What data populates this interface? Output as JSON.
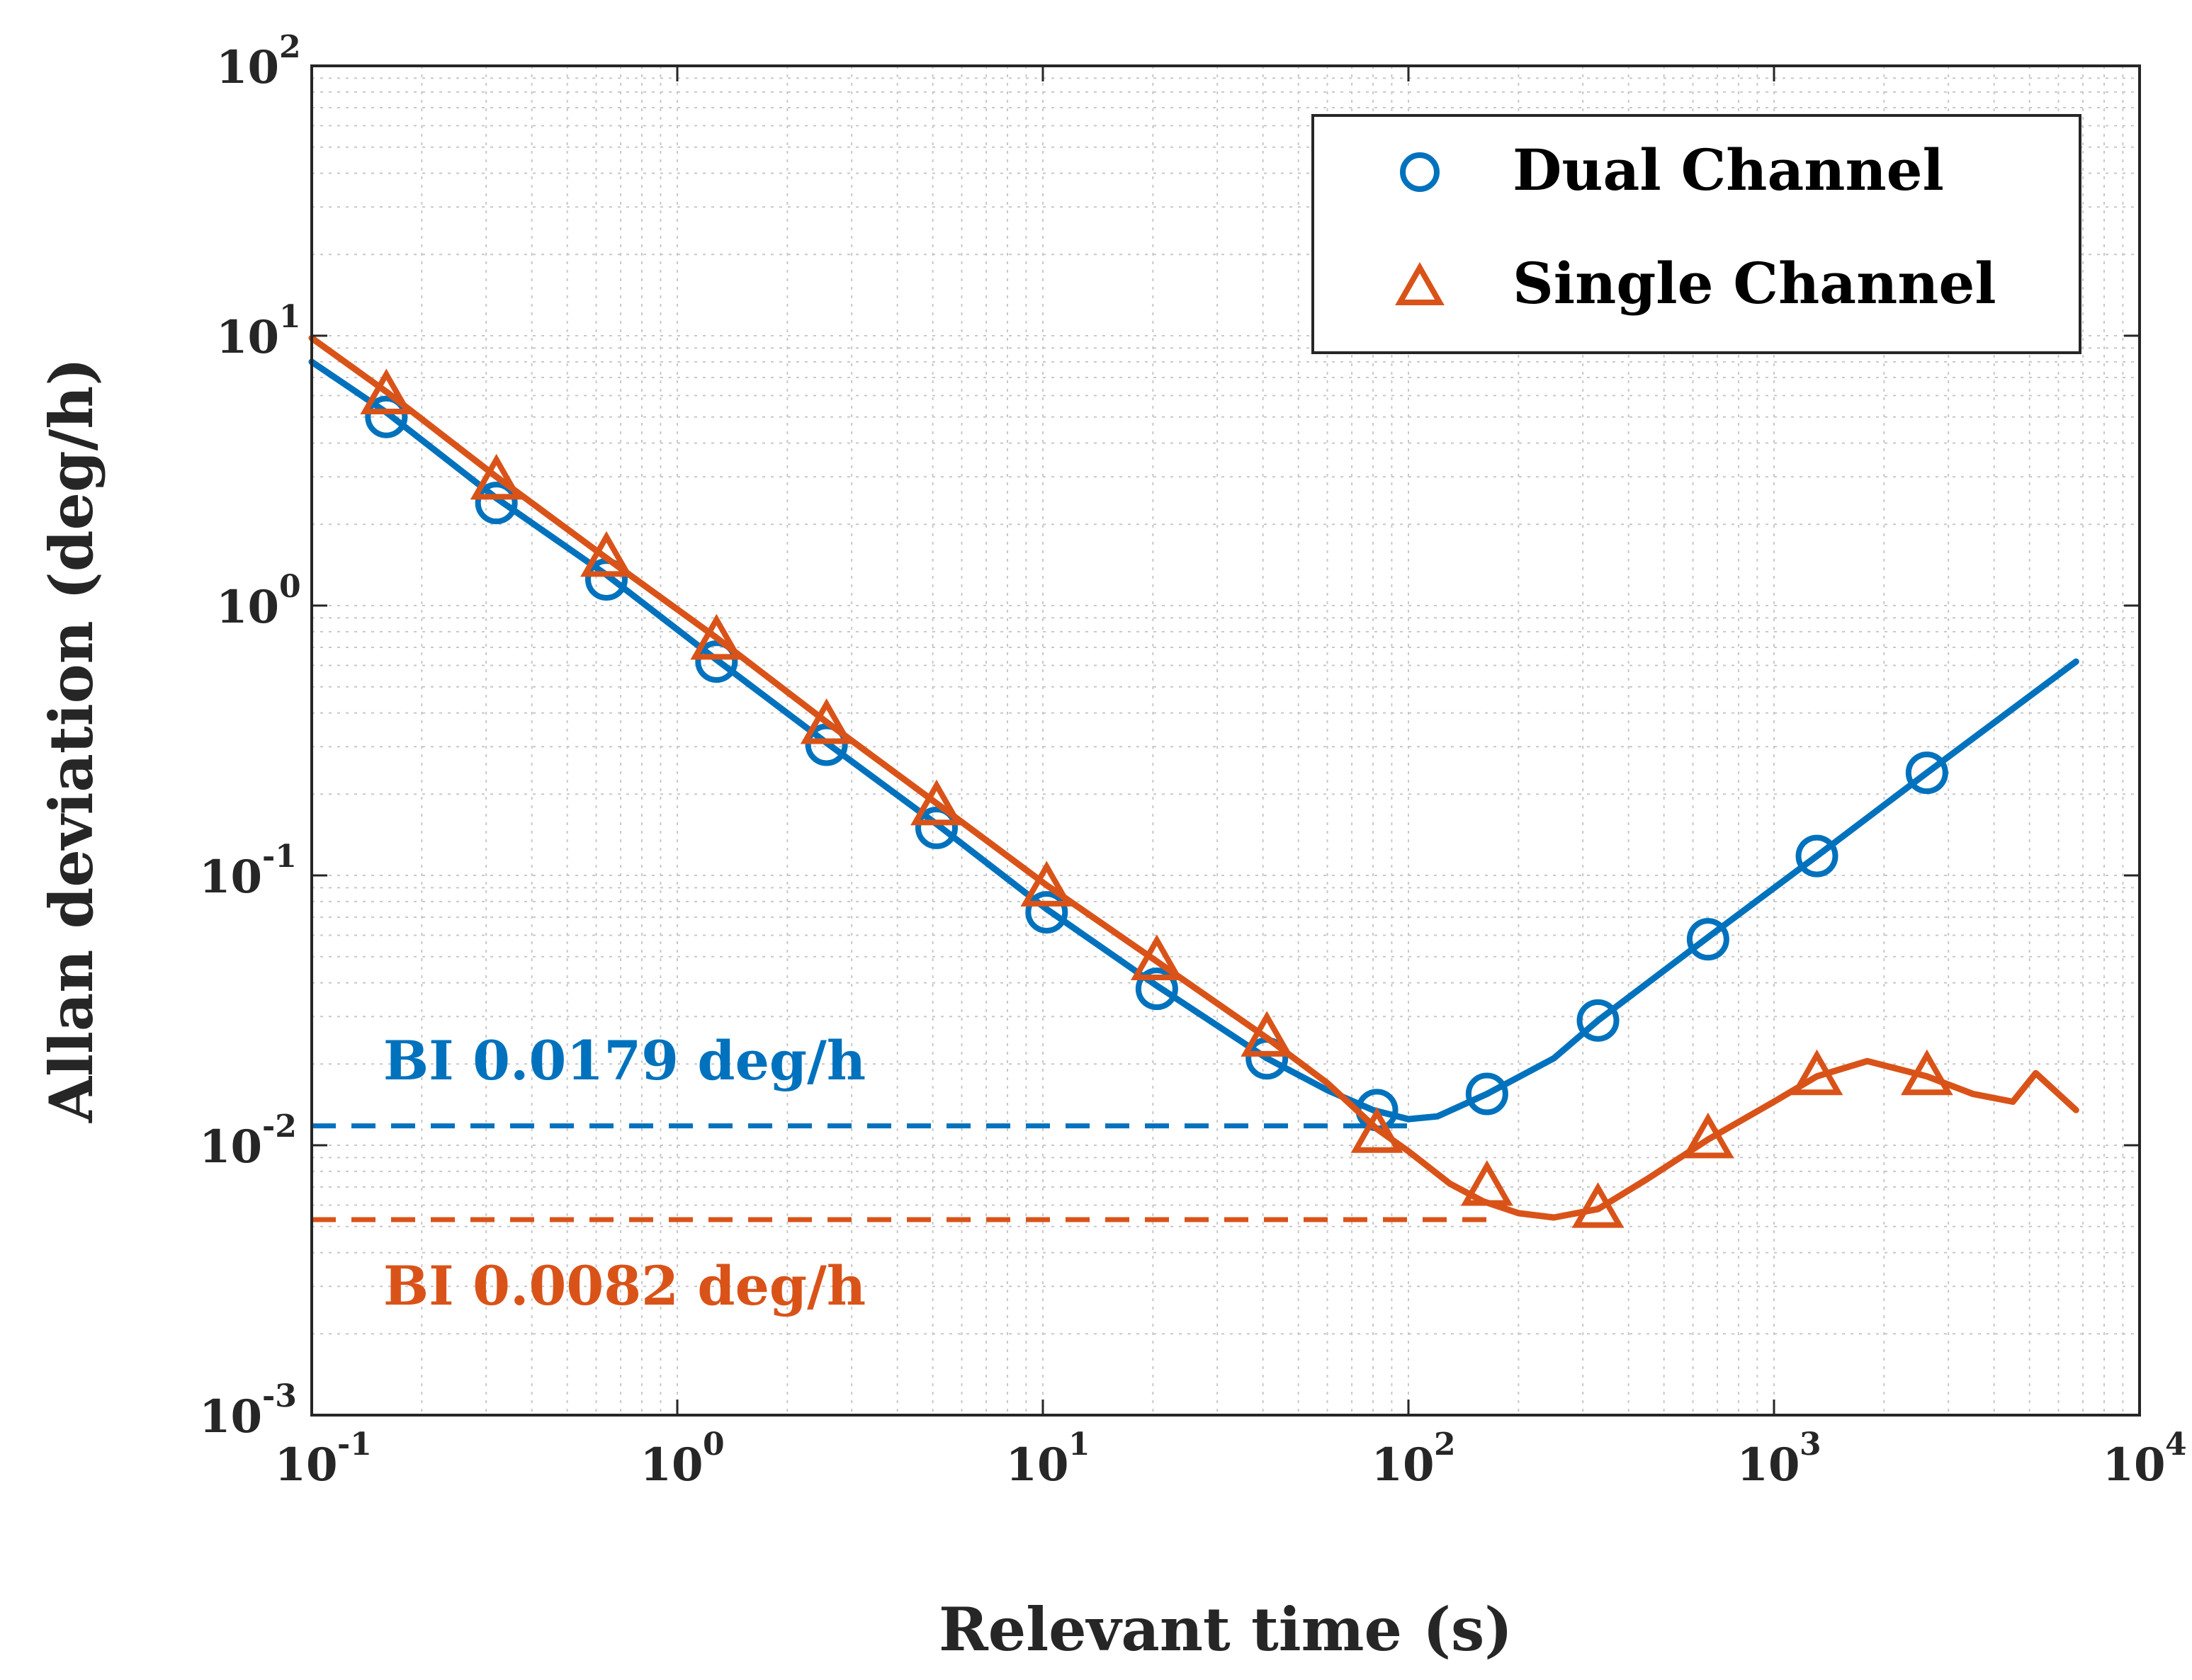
{
  "chart_data": {
    "type": "line",
    "scale": {
      "x": "log",
      "y": "log"
    },
    "xlabel": "Relevant time (s)",
    "ylabel": "Allan deviation (deg/h)",
    "xlim": [
      0.1,
      10000
    ],
    "ylim": [
      0.001,
      100
    ],
    "grid": true,
    "legend_position": "top-right",
    "x_ticks": [
      {
        "base": "10",
        "exp": "-1",
        "value": 0.1
      },
      {
        "base": "10",
        "exp": "0",
        "value": 1
      },
      {
        "base": "10",
        "exp": "1",
        "value": 10
      },
      {
        "base": "10",
        "exp": "2",
        "value": 100
      },
      {
        "base": "10",
        "exp": "3",
        "value": 1000
      },
      {
        "base": "10",
        "exp": "4",
        "value": 10000
      }
    ],
    "y_ticks": [
      {
        "base": "10",
        "exp": "-3",
        "value": 0.001
      },
      {
        "base": "10",
        "exp": "-2",
        "value": 0.01
      },
      {
        "base": "10",
        "exp": "-1",
        "value": 0.1
      },
      {
        "base": "10",
        "exp": "0",
        "value": 1
      },
      {
        "base": "10",
        "exp": "1",
        "value": 10
      },
      {
        "base": "10",
        "exp": "2",
        "value": 100
      }
    ],
    "series": [
      {
        "name": "Dual Channel",
        "color": "#0072BD",
        "marker": "circle",
        "line_points": [
          [
            0.1,
            8.0
          ],
          [
            0.16,
            5.2
          ],
          [
            0.32,
            2.5
          ],
          [
            0.64,
            1.3
          ],
          [
            1.28,
            0.63
          ],
          [
            2.56,
            0.31
          ],
          [
            5.12,
            0.155
          ],
          [
            10.24,
            0.075
          ],
          [
            20.5,
            0.039
          ],
          [
            41,
            0.021
          ],
          [
            60,
            0.016
          ],
          [
            80,
            0.0135
          ],
          [
            100,
            0.0125
          ],
          [
            120,
            0.0128
          ],
          [
            164,
            0.0155
          ],
          [
            250,
            0.021
          ],
          [
            330,
            0.029
          ],
          [
            660,
            0.059
          ],
          [
            1310,
            0.118
          ],
          [
            2620,
            0.24
          ],
          [
            6700,
            0.62
          ]
        ],
        "marker_points": [
          [
            0.16,
            5.0
          ],
          [
            0.32,
            2.4
          ],
          [
            0.64,
            1.25
          ],
          [
            1.28,
            0.62
          ],
          [
            2.56,
            0.305
          ],
          [
            5.12,
            0.15
          ],
          [
            10.24,
            0.073
          ],
          [
            20.5,
            0.038
          ],
          [
            41,
            0.021
          ],
          [
            82,
            0.0135
          ],
          [
            164,
            0.0155
          ],
          [
            330,
            0.029
          ],
          [
            660,
            0.058
          ],
          [
            1310,
            0.118
          ],
          [
            2620,
            0.24
          ]
        ]
      },
      {
        "name": "Single Channel",
        "color": "#D95319",
        "marker": "triangle",
        "line_points": [
          [
            0.1,
            9.8
          ],
          [
            0.16,
            6.2
          ],
          [
            0.32,
            3.0
          ],
          [
            0.64,
            1.5
          ],
          [
            1.28,
            0.76
          ],
          [
            2.56,
            0.37
          ],
          [
            5.12,
            0.185
          ],
          [
            10.24,
            0.092
          ],
          [
            20.5,
            0.048
          ],
          [
            41,
            0.025
          ],
          [
            60,
            0.017
          ],
          [
            82,
            0.0115
          ],
          [
            100,
            0.0095
          ],
          [
            130,
            0.0072
          ],
          [
            160,
            0.0062
          ],
          [
            200,
            0.0056
          ],
          [
            250,
            0.0054
          ],
          [
            330,
            0.0058
          ],
          [
            450,
            0.0075
          ],
          [
            660,
            0.0105
          ],
          [
            1000,
            0.0145
          ],
          [
            1310,
            0.018
          ],
          [
            1800,
            0.0205
          ],
          [
            2620,
            0.018
          ],
          [
            3500,
            0.0155
          ],
          [
            4500,
            0.0145
          ],
          [
            5200,
            0.0185
          ],
          [
            6700,
            0.0135
          ]
        ],
        "marker_points": [
          [
            0.16,
            6.0
          ],
          [
            0.32,
            2.9
          ],
          [
            0.64,
            1.5
          ],
          [
            1.28,
            0.74
          ],
          [
            2.56,
            0.36
          ],
          [
            5.12,
            0.18
          ],
          [
            10.24,
            0.09
          ],
          [
            20.5,
            0.048
          ],
          [
            41,
            0.025
          ],
          [
            82,
            0.011
          ],
          [
            164,
            0.007
          ],
          [
            330,
            0.0058
          ],
          [
            660,
            0.0105
          ],
          [
            1310,
            0.018
          ],
          [
            2620,
            0.018
          ]
        ]
      }
    ],
    "annotations": [
      {
        "text": "BI 0.0179 deg/h",
        "color": "#0072BD",
        "line_y": 0.0118,
        "line_x": [
          0.1,
          100
        ],
        "text_pos": [
          0.15,
          0.0205
        ]
      },
      {
        "text": "BI 0.0082 deg/h",
        "color": "#D95319",
        "line_y": 0.0053,
        "line_x": [
          0.1,
          170
        ],
        "text_pos": [
          0.15,
          0.003
        ]
      }
    ]
  }
}
